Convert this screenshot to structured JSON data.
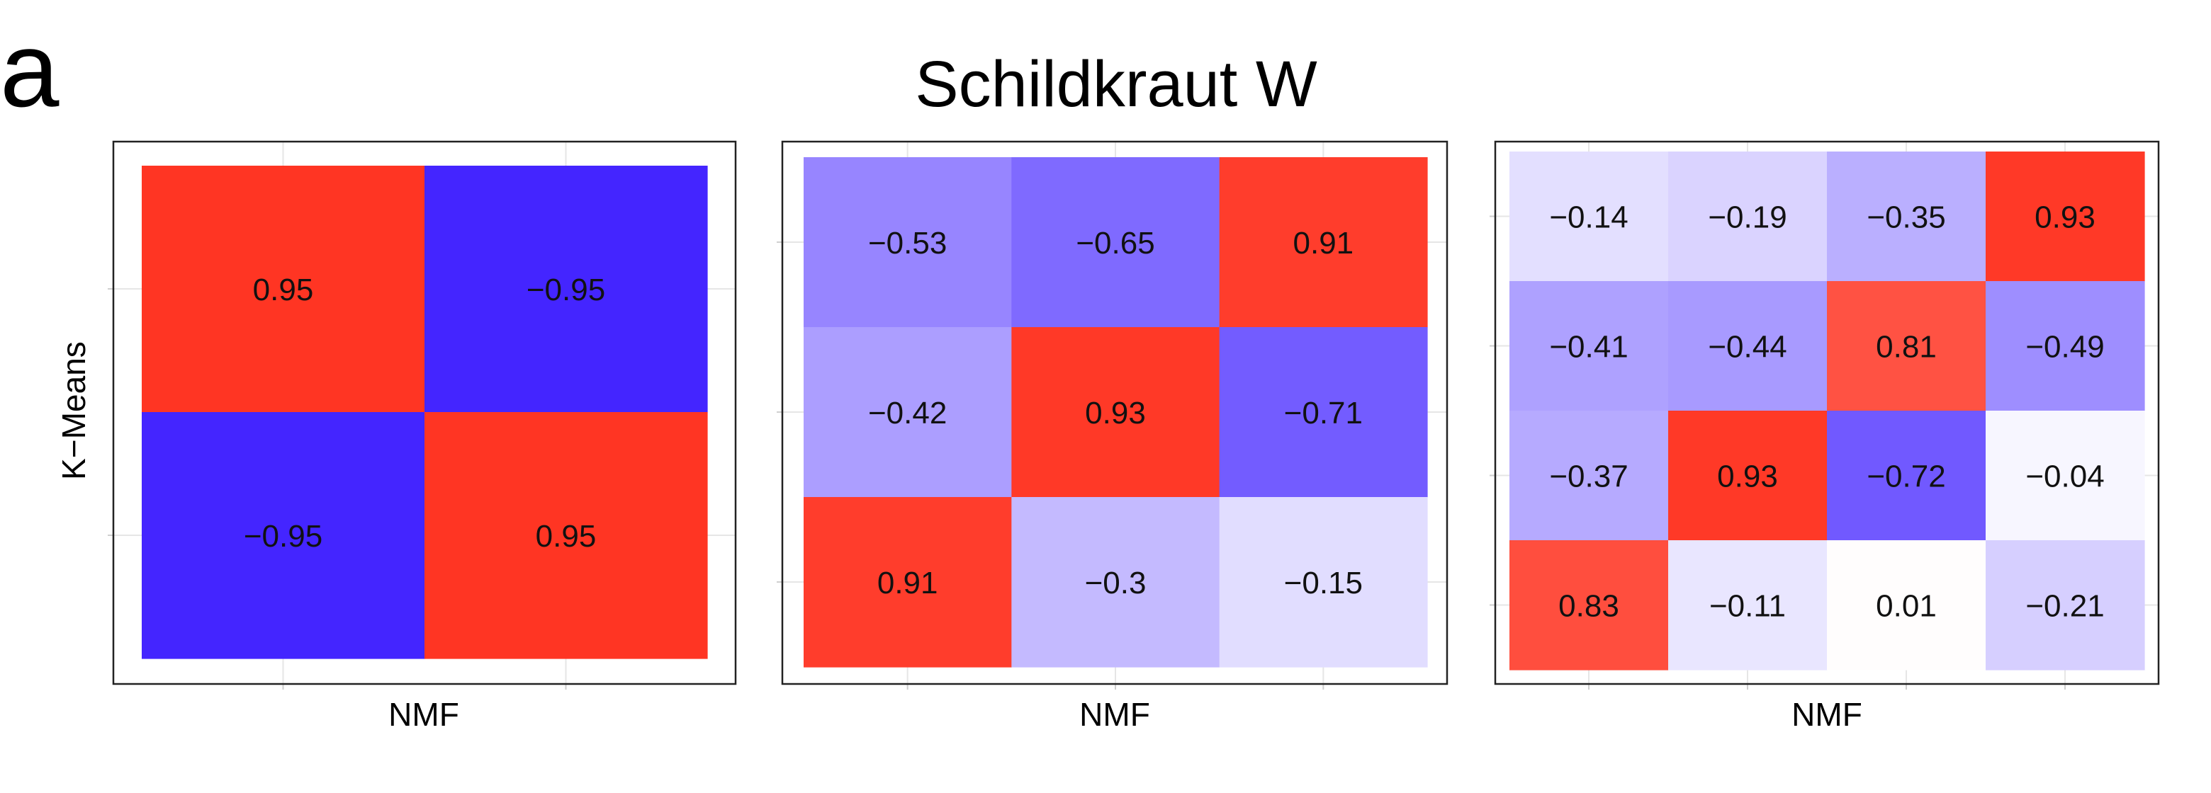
{
  "figure": {
    "panel_letter": "a",
    "title": "Schildkraut W",
    "ylabel": "K−Means"
  },
  "colors": {
    "negative": "#3a19ff",
    "neutral": "#ffffff",
    "positive": "#ff2a17"
  },
  "chart_data": [
    {
      "type": "heatmap",
      "xlabel": "NMF",
      "ylabel": "K−Means",
      "rows": 2,
      "cols": 2,
      "values": [
        [
          0.95,
          -0.95
        ],
        [
          -0.95,
          0.95
        ]
      ],
      "labels": [
        [
          "0.95",
          "−0.95"
        ],
        [
          "−0.95",
          "0.95"
        ]
      ]
    },
    {
      "type": "heatmap",
      "xlabel": "NMF",
      "rows": 3,
      "cols": 3,
      "values": [
        [
          -0.53,
          -0.65,
          0.91
        ],
        [
          -0.42,
          0.93,
          -0.71
        ],
        [
          0.91,
          -0.3,
          -0.15
        ]
      ],
      "labels": [
        [
          "−0.53",
          "−0.65",
          "0.91"
        ],
        [
          "−0.42",
          "0.93",
          "−0.71"
        ],
        [
          "0.91",
          "−0.3",
          "−0.15"
        ]
      ]
    },
    {
      "type": "heatmap",
      "xlabel": "NMF",
      "rows": 4,
      "cols": 4,
      "values": [
        [
          -0.14,
          -0.19,
          -0.35,
          0.93
        ],
        [
          -0.41,
          -0.44,
          0.81,
          -0.49
        ],
        [
          -0.37,
          0.93,
          -0.72,
          -0.04
        ],
        [
          0.83,
          -0.11,
          0.01,
          -0.21
        ]
      ],
      "labels": [
        [
          "−0.14",
          "−0.19",
          "−0.35",
          "0.93"
        ],
        [
          "−0.41",
          "−0.44",
          "0.81",
          "−0.49"
        ],
        [
          "−0.37",
          "0.93",
          "−0.72",
          "−0.04"
        ],
        [
          "0.83",
          "−0.11",
          "0.01",
          "−0.21"
        ]
      ]
    }
  ]
}
